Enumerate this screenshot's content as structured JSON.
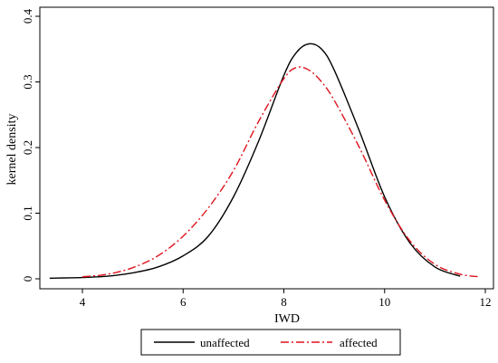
{
  "chart_data": {
    "type": "line",
    "title": "",
    "xlabel": "IWD",
    "ylabel": "kernel density",
    "xlim": [
      3.0,
      12.3
    ],
    "ylim": [
      0,
      0.4
    ],
    "x_ticks": [
      4,
      6,
      8,
      10,
      12
    ],
    "y_ticks": [
      0,
      0.1,
      0.2,
      0.3,
      0.4
    ],
    "x_tick_labels": [
      "4",
      "6",
      "8",
      "10",
      "12"
    ],
    "y_tick_labels": [
      "0",
      "0.1",
      "0.2",
      "0.3",
      "0.4"
    ],
    "grid": false,
    "legend_position": "bottom",
    "series": [
      {
        "name": "unaffected",
        "color": "#000000",
        "style": "solid",
        "x": [
          3.35,
          4.0,
          4.5,
          5.0,
          5.5,
          6.0,
          6.5,
          7.0,
          7.5,
          8.0,
          8.25,
          8.5,
          8.75,
          9.0,
          9.5,
          10.0,
          10.5,
          11.0,
          11.5
        ],
        "y": [
          0.001,
          0.002,
          0.004,
          0.009,
          0.018,
          0.035,
          0.065,
          0.125,
          0.21,
          0.31,
          0.345,
          0.358,
          0.35,
          0.318,
          0.225,
          0.125,
          0.055,
          0.018,
          0.004
        ]
      },
      {
        "name": "affected",
        "color": "#e0141e",
        "style": "dashdot",
        "x": [
          4.0,
          4.5,
          5.0,
          5.5,
          6.0,
          6.5,
          7.0,
          7.5,
          8.0,
          8.25,
          8.5,
          8.75,
          9.0,
          9.5,
          10.0,
          10.5,
          11.0,
          11.5,
          11.9
        ],
        "y": [
          0.003,
          0.007,
          0.017,
          0.035,
          0.065,
          0.108,
          0.165,
          0.24,
          0.305,
          0.322,
          0.318,
          0.3,
          0.272,
          0.2,
          0.12,
          0.058,
          0.022,
          0.007,
          0.003
        ]
      }
    ]
  }
}
